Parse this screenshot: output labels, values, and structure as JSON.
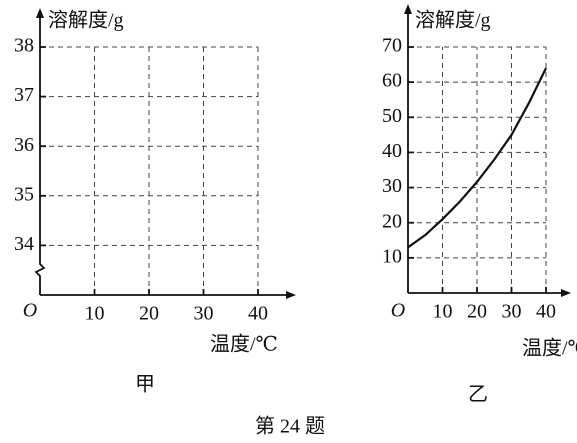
{
  "chart_data": [
    {
      "type": "line",
      "ylabel": "溶解度/g",
      "xlabel": "温度/℃",
      "origin_label": "O",
      "caption": "甲",
      "xlim": [
        0,
        40
      ],
      "xticks": [
        10,
        20,
        30,
        40
      ],
      "ylim": [
        33,
        38
      ],
      "yticks": [
        34,
        35,
        36,
        37,
        38
      ],
      "grid": true,
      "axis_break": true
    },
    {
      "type": "line",
      "ylabel": "溶解度/g",
      "xlabel": "温度/℃",
      "origin_label": "O",
      "caption": "乙",
      "xlim": [
        0,
        40
      ],
      "xticks": [
        10,
        20,
        30,
        40
      ],
      "ylim": [
        0,
        70
      ],
      "yticks": [
        10,
        20,
        30,
        40,
        50,
        60,
        70
      ],
      "grid": true,
      "x": [
        0,
        5,
        10,
        15,
        20,
        25,
        30,
        35,
        40
      ],
      "series": [
        {
          "color": "#111111",
          "values": [
            13,
            16.5,
            21,
            26,
            31.6,
            38,
            45,
            54,
            64
          ]
        }
      ]
    }
  ],
  "footer": "第 24 题"
}
